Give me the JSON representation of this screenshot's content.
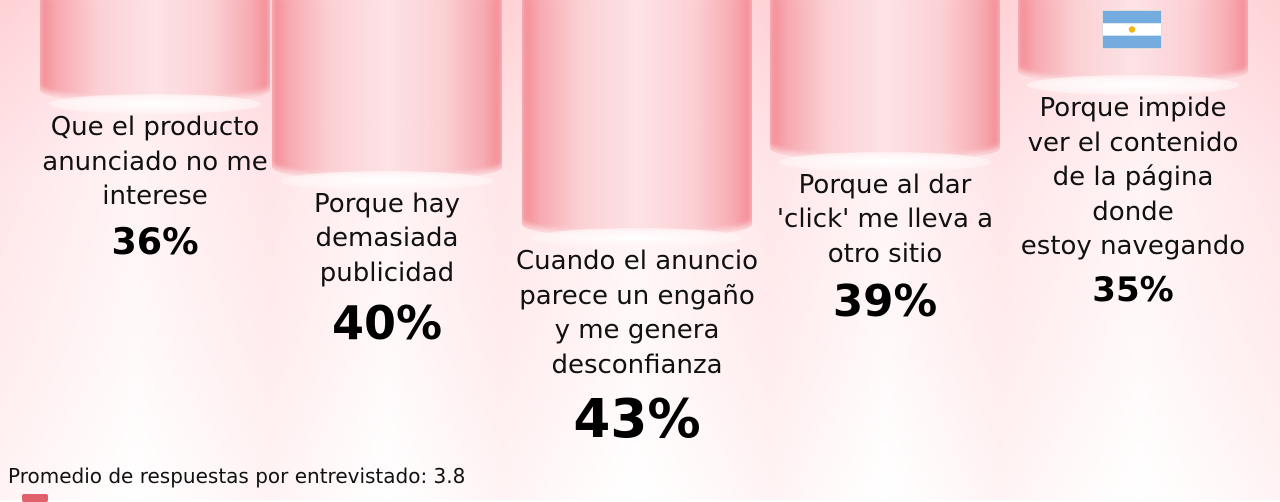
{
  "chart_data": {
    "type": "bar",
    "orientation": "vertical-hanging",
    "categories": [
      "Que el producto anunciado no me interese",
      "Porque hay demasiada publicidad",
      "Cuando el anuncio parece un engaño y me genera desconfianza",
      "Porque al dar 'click' me lleva a otro sitio",
      "Porque impide ver el contenido de la página donde estoy navegando"
    ],
    "category_lines": [
      [
        "Que el producto",
        "anunciado no me",
        "interese"
      ],
      [
        "Porque hay",
        "demasiada",
        "publicidad"
      ],
      [
        "Cuando el anuncio",
        "parece un engaño",
        "y me genera",
        "desconfianza"
      ],
      [
        "Porque al dar",
        "'click' me lleva a",
        "otro sitio"
      ],
      [
        "Porque impide",
        "ver el contenido",
        "de la página donde",
        "estoy navegando"
      ]
    ],
    "values": [
      36,
      40,
      43,
      39,
      35
    ],
    "value_labels": [
      "36%",
      "40%",
      "43%",
      "39%",
      "35%"
    ],
    "ylim": [
      0,
      43
    ],
    "grid": false,
    "legend": "none",
    "bar_color": "#f7aab1",
    "flag": "argentina"
  },
  "footnote": "Promedio de respuestas por entrevistado: 3.8",
  "colors": {
    "flag_blue": "#74acdf",
    "flag_white": "#ffffff",
    "flag_sun": "#f6b40e",
    "accent": "#e0606c"
  }
}
